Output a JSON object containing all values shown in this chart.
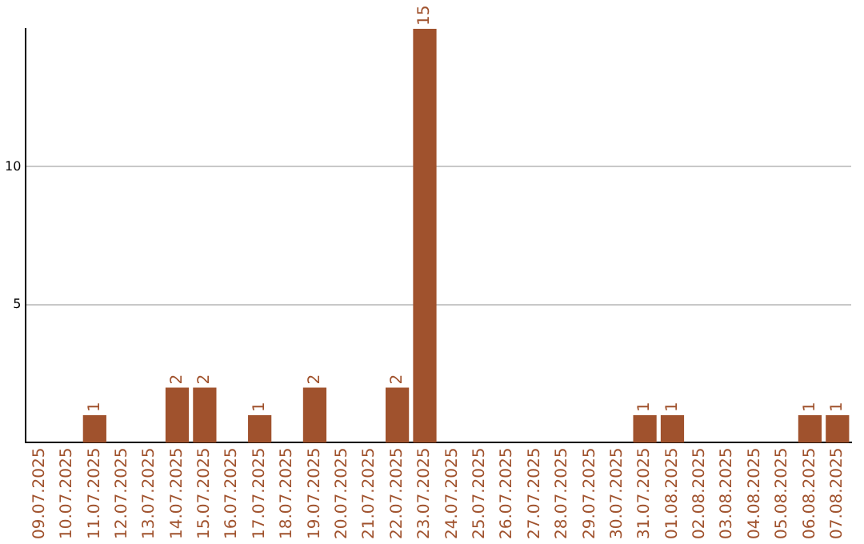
{
  "chart_data": {
    "type": "bar",
    "categories": [
      "09.07.2025",
      "10.07.2025",
      "11.07.2025",
      "12.07.2025",
      "13.07.2025",
      "14.07.2025",
      "15.07.2025",
      "16.07.2025",
      "17.07.2025",
      "18.07.2025",
      "19.07.2025",
      "20.07.2025",
      "21.07.2025",
      "22.07.2025",
      "23.07.2025",
      "24.07.2025",
      "25.07.2025",
      "26.07.2025",
      "27.07.2025",
      "28.07.2025",
      "29.07.2025",
      "30.07.2025",
      "31.07.2025",
      "01.08.2025",
      "02.08.2025",
      "03.08.2025",
      "04.08.2025",
      "05.08.2025",
      "06.08.2025",
      "07.08.2025"
    ],
    "values": [
      0,
      0,
      1,
      0,
      0,
      2,
      2,
      0,
      1,
      0,
      2,
      0,
      0,
      2,
      15,
      0,
      0,
      0,
      0,
      0,
      0,
      0,
      1,
      1,
      0,
      0,
      0,
      0,
      1,
      1
    ],
    "value_labels": [
      null,
      null,
      "1",
      null,
      null,
      "2",
      "2",
      null,
      "1",
      null,
      "2",
      null,
      null,
      "2",
      "15",
      null,
      null,
      null,
      null,
      null,
      null,
      null,
      "1",
      "1",
      null,
      null,
      null,
      null,
      "1",
      "1"
    ],
    "color": "#a0522d",
    "ylim": [
      0,
      15
    ],
    "yticks": [
      5,
      10
    ],
    "grid": "y",
    "legend": false
  }
}
